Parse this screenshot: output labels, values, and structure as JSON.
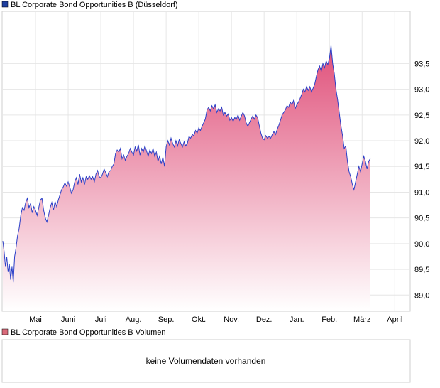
{
  "chart_data": {
    "type": "area",
    "title": "BL Corporate Bond Opportunities B (Düsseldorf)",
    "legend_color": "#1f3f9f",
    "line_color": "#2a3fc8",
    "fill_top_color": "#e0507a",
    "fill_bottom_color": "#ffffff",
    "ylim": [
      88.7,
      94.5
    ],
    "y_ticks": [
      89.0,
      89.5,
      90.0,
      90.5,
      91.0,
      91.5,
      92.0,
      92.5,
      93.0,
      93.5
    ],
    "y_tick_labels": [
      "89,0",
      "89,5",
      "90,0",
      "90,5",
      "91,0",
      "91,5",
      "92,0",
      "92,5",
      "93,0",
      "93,5"
    ],
    "x_months": [
      "Mai",
      "Juni",
      "Juli",
      "Aug.",
      "Sep.",
      "Okt.",
      "Nov.",
      "Dez.",
      "Jan.",
      "Feb.",
      "März",
      "April"
    ],
    "x_month_index": [
      1,
      2,
      3,
      4,
      5,
      6,
      7,
      8,
      9,
      10,
      11,
      12
    ],
    "xlim": [
      0.0,
      12.45
    ],
    "series": [
      {
        "points": [
          [
            0.0,
            90.05
          ],
          [
            0.04,
            89.85
          ],
          [
            0.08,
            89.55
          ],
          [
            0.12,
            89.75
          ],
          [
            0.16,
            89.45
          ],
          [
            0.2,
            89.6
          ],
          [
            0.24,
            89.3
          ],
          [
            0.28,
            89.55
          ],
          [
            0.32,
            89.25
          ],
          [
            0.36,
            89.75
          ],
          [
            0.4,
            89.9
          ],
          [
            0.45,
            90.15
          ],
          [
            0.5,
            90.3
          ],
          [
            0.55,
            90.55
          ],
          [
            0.6,
            90.7
          ],
          [
            0.65,
            90.65
          ],
          [
            0.7,
            90.8
          ],
          [
            0.75,
            90.88
          ],
          [
            0.8,
            90.7
          ],
          [
            0.85,
            90.78
          ],
          [
            0.9,
            90.6
          ],
          [
            0.95,
            90.72
          ],
          [
            1.0,
            90.65
          ],
          [
            1.05,
            90.55
          ],
          [
            1.1,
            90.7
          ],
          [
            1.15,
            90.85
          ],
          [
            1.2,
            90.88
          ],
          [
            1.25,
            90.65
          ],
          [
            1.3,
            90.5
          ],
          [
            1.35,
            90.42
          ],
          [
            1.4,
            90.55
          ],
          [
            1.45,
            90.7
          ],
          [
            1.5,
            90.8
          ],
          [
            1.55,
            90.65
          ],
          [
            1.6,
            90.82
          ],
          [
            1.65,
            90.72
          ],
          [
            1.7,
            90.85
          ],
          [
            1.75,
            90.95
          ],
          [
            1.8,
            91.05
          ],
          [
            1.85,
            91.1
          ],
          [
            1.9,
            91.18
          ],
          [
            1.95,
            91.12
          ],
          [
            2.0,
            91.2
          ],
          [
            2.05,
            91.1
          ],
          [
            2.1,
            90.98
          ],
          [
            2.15,
            91.05
          ],
          [
            2.2,
            91.2
          ],
          [
            2.25,
            91.28
          ],
          [
            2.3,
            91.15
          ],
          [
            2.35,
            91.35
          ],
          [
            2.4,
            91.2
          ],
          [
            2.45,
            91.28
          ],
          [
            2.5,
            91.15
          ],
          [
            2.55,
            91.3
          ],
          [
            2.6,
            91.25
          ],
          [
            2.65,
            91.32
          ],
          [
            2.7,
            91.25
          ],
          [
            2.75,
            91.3
          ],
          [
            2.8,
            91.2
          ],
          [
            2.85,
            91.35
          ],
          [
            2.9,
            91.42
          ],
          [
            2.95,
            91.3
          ],
          [
            3.0,
            91.28
          ],
          [
            3.05,
            91.35
          ],
          [
            3.1,
            91.45
          ],
          [
            3.15,
            91.38
          ],
          [
            3.2,
            91.3
          ],
          [
            3.25,
            91.4
          ],
          [
            3.3,
            91.42
          ],
          [
            3.35,
            91.5
          ],
          [
            3.4,
            91.55
          ],
          [
            3.45,
            91.75
          ],
          [
            3.5,
            91.82
          ],
          [
            3.55,
            91.78
          ],
          [
            3.6,
            91.85
          ],
          [
            3.65,
            91.65
          ],
          [
            3.7,
            91.72
          ],
          [
            3.75,
            91.62
          ],
          [
            3.8,
            91.7
          ],
          [
            3.85,
            91.75
          ],
          [
            3.9,
            91.85
          ],
          [
            3.95,
            91.78
          ],
          [
            4.0,
            91.72
          ],
          [
            4.05,
            91.88
          ],
          [
            4.1,
            91.8
          ],
          [
            4.15,
            91.92
          ],
          [
            4.2,
            91.72
          ],
          [
            4.25,
            91.85
          ],
          [
            4.3,
            91.78
          ],
          [
            4.35,
            91.9
          ],
          [
            4.4,
            91.8
          ],
          [
            4.45,
            91.7
          ],
          [
            4.5,
            91.82
          ],
          [
            4.55,
            91.75
          ],
          [
            4.6,
            91.85
          ],
          [
            4.65,
            91.7
          ],
          [
            4.7,
            91.78
          ],
          [
            4.75,
            91.6
          ],
          [
            4.8,
            91.7
          ],
          [
            4.85,
            91.55
          ],
          [
            4.9,
            91.68
          ],
          [
            4.95,
            91.5
          ],
          [
            5.0,
            91.88
          ],
          [
            5.05,
            92.0
          ],
          [
            5.1,
            91.92
          ],
          [
            5.15,
            92.05
          ],
          [
            5.2,
            91.95
          ],
          [
            5.25,
            91.88
          ],
          [
            5.3,
            92.0
          ],
          [
            5.35,
            91.9
          ],
          [
            5.4,
            92.02
          ],
          [
            5.45,
            91.95
          ],
          [
            5.5,
            91.88
          ],
          [
            5.55,
            91.98
          ],
          [
            5.6,
            91.9
          ],
          [
            5.65,
            91.95
          ],
          [
            5.7,
            92.08
          ],
          [
            5.75,
            92.05
          ],
          [
            5.8,
            92.12
          ],
          [
            5.85,
            92.1
          ],
          [
            5.9,
            92.2
          ],
          [
            5.95,
            92.15
          ],
          [
            6.0,
            92.25
          ],
          [
            6.05,
            92.2
          ],
          [
            6.1,
            92.28
          ],
          [
            6.15,
            92.35
          ],
          [
            6.2,
            92.42
          ],
          [
            6.25,
            92.6
          ],
          [
            6.3,
            92.65
          ],
          [
            6.35,
            92.58
          ],
          [
            6.4,
            92.68
          ],
          [
            6.45,
            92.62
          ],
          [
            6.5,
            92.7
          ],
          [
            6.55,
            92.55
          ],
          [
            6.6,
            92.62
          ],
          [
            6.65,
            92.58
          ],
          [
            6.7,
            92.65
          ],
          [
            6.75,
            92.5
          ],
          [
            6.8,
            92.55
          ],
          [
            6.85,
            92.48
          ],
          [
            6.9,
            92.52
          ],
          [
            6.95,
            92.4
          ],
          [
            7.0,
            92.45
          ],
          [
            7.05,
            92.38
          ],
          [
            7.1,
            92.45
          ],
          [
            7.15,
            92.42
          ],
          [
            7.2,
            92.5
          ],
          [
            7.25,
            92.4
          ],
          [
            7.3,
            92.48
          ],
          [
            7.35,
            92.55
          ],
          [
            7.4,
            92.48
          ],
          [
            7.45,
            92.35
          ],
          [
            7.5,
            92.28
          ],
          [
            7.55,
            92.35
          ],
          [
            7.6,
            92.42
          ],
          [
            7.65,
            92.48
          ],
          [
            7.7,
            92.42
          ],
          [
            7.75,
            92.5
          ],
          [
            7.8,
            92.45
          ],
          [
            7.85,
            92.3
          ],
          [
            7.9,
            92.15
          ],
          [
            7.95,
            92.05
          ],
          [
            8.0,
            92.02
          ],
          [
            8.05,
            92.1
          ],
          [
            8.1,
            92.05
          ],
          [
            8.15,
            92.08
          ],
          [
            8.2,
            92.05
          ],
          [
            8.25,
            92.12
          ],
          [
            8.3,
            92.18
          ],
          [
            8.35,
            92.12
          ],
          [
            8.4,
            92.22
          ],
          [
            8.45,
            92.3
          ],
          [
            8.5,
            92.4
          ],
          [
            8.55,
            92.5
          ],
          [
            8.6,
            92.55
          ],
          [
            8.65,
            92.6
          ],
          [
            8.7,
            92.68
          ],
          [
            8.75,
            92.65
          ],
          [
            8.8,
            92.75
          ],
          [
            8.85,
            92.7
          ],
          [
            8.9,
            92.78
          ],
          [
            8.95,
            92.62
          ],
          [
            9.0,
            92.7
          ],
          [
            9.05,
            92.75
          ],
          [
            9.1,
            92.82
          ],
          [
            9.15,
            92.9
          ],
          [
            9.2,
            93.0
          ],
          [
            9.25,
            92.95
          ],
          [
            9.3,
            93.05
          ],
          [
            9.35,
            92.98
          ],
          [
            9.4,
            93.05
          ],
          [
            9.45,
            92.95
          ],
          [
            9.5,
            93.02
          ],
          [
            9.55,
            93.1
          ],
          [
            9.6,
            93.25
          ],
          [
            9.65,
            93.38
          ],
          [
            9.7,
            93.45
          ],
          [
            9.75,
            93.35
          ],
          [
            9.8,
            93.5
          ],
          [
            9.85,
            93.42
          ],
          [
            9.9,
            93.55
          ],
          [
            9.95,
            93.48
          ],
          [
            10.0,
            93.6
          ],
          [
            10.05,
            93.85
          ],
          [
            10.1,
            93.5
          ],
          [
            10.15,
            93.3
          ],
          [
            10.2,
            93.0
          ],
          [
            10.25,
            92.8
          ],
          [
            10.3,
            92.55
          ],
          [
            10.35,
            92.3
          ],
          [
            10.4,
            92.1
          ],
          [
            10.45,
            91.85
          ],
          [
            10.5,
            91.9
          ],
          [
            10.55,
            91.6
          ],
          [
            10.6,
            91.4
          ],
          [
            10.65,
            91.3
          ],
          [
            10.7,
            91.15
          ],
          [
            10.75,
            91.05
          ],
          [
            10.8,
            91.2
          ],
          [
            10.85,
            91.35
          ],
          [
            10.9,
            91.5
          ],
          [
            10.95,
            91.4
          ],
          [
            11.0,
            91.55
          ],
          [
            11.05,
            91.7
          ],
          [
            11.1,
            91.6
          ],
          [
            11.15,
            91.45
          ],
          [
            11.2,
            91.6
          ],
          [
            11.25,
            91.65
          ]
        ]
      }
    ]
  },
  "volume": {
    "title": "BL Corporate Bond Opportunities B Volumen",
    "legend_color": "#d96a7a",
    "message": "keine Volumendaten vorhanden"
  }
}
